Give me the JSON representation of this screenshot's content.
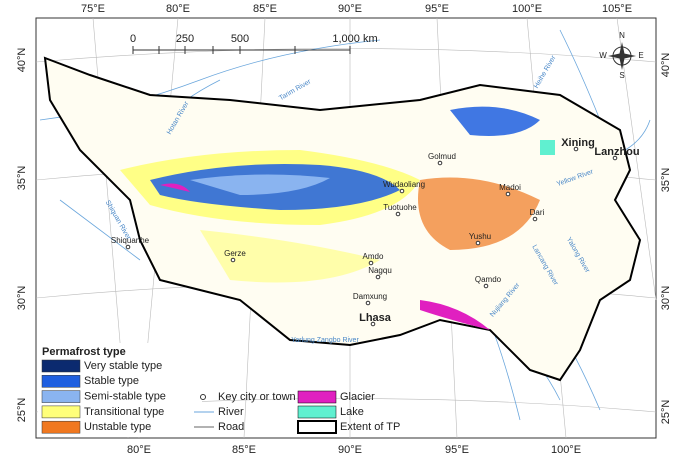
{
  "map": {
    "lon_top": [
      "75°E",
      "80°E",
      "85°E",
      "90°E",
      "95°E",
      "100°E",
      "105°E"
    ],
    "lon_bottom": [
      "80°E",
      "85°E",
      "90°E",
      "95°E",
      "100°E"
    ],
    "lat_left": [
      "40°N",
      "35°N",
      "30°N",
      "25°N"
    ],
    "lat_right": [
      "40°N",
      "35°N",
      "30°N",
      "25°N"
    ],
    "scale": [
      "0",
      "250",
      "500",
      "1,000 km"
    ],
    "compass": [
      "N",
      "S",
      "W",
      "E"
    ],
    "cities": [
      "Xining",
      "Lanzhou",
      "Golmud",
      "Wudaoliang",
      "Tuotuohe",
      "Madoi",
      "Dari",
      "Yushu",
      "Amdo",
      "Nagqu",
      "Qamdo",
      "Damxung",
      "Lhasa",
      "Gerze",
      "Shiquanhe"
    ],
    "rivers": [
      "Tarim River",
      "Hotan River",
      "Shiquan River",
      "Yellow River",
      "Heihe River",
      "Yarlung Zangbo River",
      "Yalong River",
      "Lancang River",
      "Nujiang River"
    ]
  },
  "legend": {
    "title": "Permafrost type",
    "types": [
      {
        "name": "Very stable type",
        "color": "#0b2a6f"
      },
      {
        "name": "Stable type",
        "color": "#1f5fe0"
      },
      {
        "name": "Semi-stable type",
        "color": "#8ab4f0"
      },
      {
        "name": "Transitional type",
        "color": "#ffff7a"
      },
      {
        "name": "Unstable type",
        "color": "#f07820"
      }
    ],
    "symbols": [
      "Key city or town",
      "River",
      "Road"
    ],
    "areas": [
      {
        "name": "Glacier",
        "color": "#e020c0"
      },
      {
        "name": "Lake",
        "color": "#60f0d0"
      },
      {
        "name": "Extent of TP",
        "color": "#ffffff"
      }
    ]
  }
}
